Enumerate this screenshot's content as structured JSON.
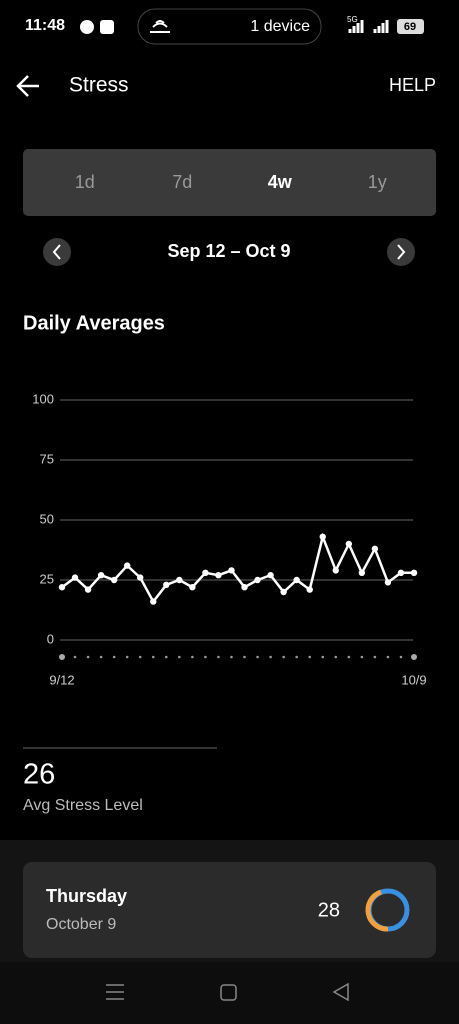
{
  "status_bar": {
    "time": "11:48",
    "hotspot": "1 device",
    "network": "5G",
    "battery": "69"
  },
  "header": {
    "title": "Stress",
    "help": "HELP"
  },
  "tabs": {
    "items": [
      "1d",
      "7d",
      "4w",
      "1y"
    ],
    "selected": 2
  },
  "date_range": "Sep 12 – Oct 9",
  "section_title": "Daily Averages",
  "chart_data": {
    "type": "line",
    "categories": [
      "9/12",
      null,
      null,
      null,
      null,
      null,
      null,
      null,
      null,
      null,
      null,
      null,
      null,
      null,
      null,
      null,
      null,
      null,
      null,
      null,
      null,
      null,
      null,
      null,
      null,
      null,
      null,
      "10/9"
    ],
    "values": [
      22,
      26,
      21,
      27,
      25,
      31,
      26,
      16,
      23,
      25,
      22,
      28,
      27,
      29,
      22,
      25,
      27,
      20,
      25,
      21,
      43,
      29,
      40,
      28,
      38,
      24,
      28,
      28
    ],
    "color": "#ffffff",
    "ylim": [
      0,
      100
    ],
    "yticks": [
      0,
      25,
      50,
      75,
      100
    ],
    "grid": true
  },
  "summary": {
    "value": "26",
    "label": "Avg Stress Level"
  },
  "day_card": {
    "day": "Thursday",
    "date": "October 9",
    "value": "28"
  }
}
